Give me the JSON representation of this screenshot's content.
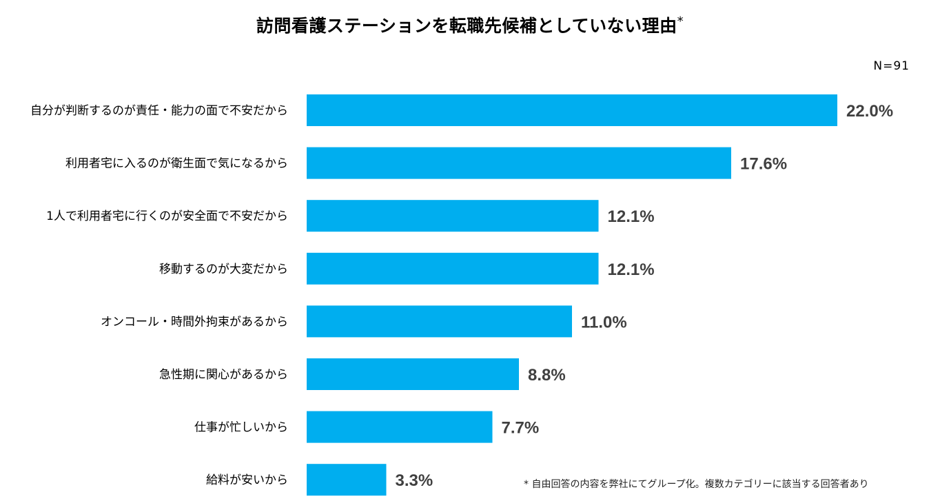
{
  "chart_data": {
    "type": "bar",
    "orientation": "horizontal",
    "title": "訪問看護ステーションを転職先候補としていない理由",
    "title_mark": "*",
    "sample_size": "N=91",
    "categories": [
      "自分が判断するのが責任・能力の面で不安だから",
      "利用者宅に入るのが衛生面で気になるから",
      "1人で利用者宅に行くのが安全面で不安だから",
      "移動するのが大変だから",
      "オンコール・時間外拘束があるから",
      "急性期に関心があるから",
      "仕事が忙しいから",
      "給料が安いから"
    ],
    "values": [
      22.0,
      17.6,
      12.1,
      12.1,
      11.0,
      8.8,
      7.7,
      3.3
    ],
    "value_labels": [
      "22.0%",
      "17.6%",
      "12.1%",
      "12.1%",
      "11.0%",
      "8.8%",
      "7.7%",
      "3.3%"
    ],
    "unit": "%",
    "xlim": [
      0,
      22.0
    ],
    "bar_color": "#00AEEF",
    "label_color": "#404040",
    "grid": false,
    "footnote": "* 自由回答の内容を弊社にてグループ化。複数カテゴリーに該当する回答者あり"
  }
}
